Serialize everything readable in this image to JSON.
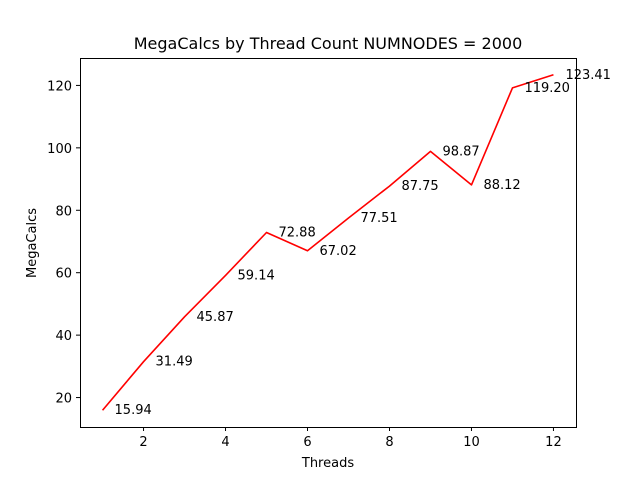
{
  "chart_data": {
    "type": "line",
    "title": "MegaCalcs by Thread Count NUMNODES = 2000",
    "xlabel": "Threads",
    "ylabel": "MegaCalcs",
    "x": [
      1,
      2,
      3,
      4,
      5,
      6,
      7,
      8,
      9,
      10,
      11,
      12
    ],
    "series": [
      {
        "values": [
          15.94,
          31.49,
          45.87,
          59.14,
          72.88,
          67.02,
          77.51,
          87.75,
          98.87,
          88.12,
          119.2,
          123.41
        ],
        "labels": [
          "15.94",
          "31.49",
          "45.87",
          "59.14",
          "72.88",
          "67.02",
          "77.51",
          "87.75",
          "98.87",
          "88.12",
          "119.20",
          "123.41"
        ],
        "color": "#ff0000"
      }
    ],
    "xlim": [
      0.45,
      12.55
    ],
    "ylim": [
      10.565,
      128.785
    ],
    "xticks": [
      2,
      4,
      6,
      8,
      10,
      12
    ],
    "xtick_labels": [
      "2",
      "4",
      "6",
      "8",
      "10",
      "12"
    ],
    "yticks": [
      20,
      40,
      60,
      80,
      100,
      120
    ],
    "ytick_labels": [
      "20",
      "40",
      "60",
      "80",
      "100",
      "120"
    ],
    "grid": false,
    "legend": false
  }
}
